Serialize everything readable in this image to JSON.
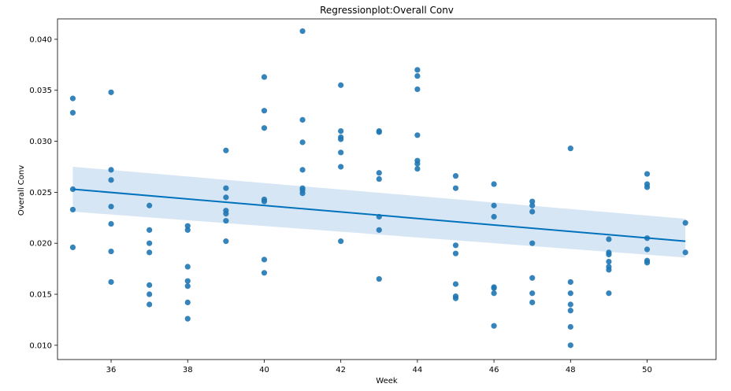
{
  "chart_data": {
    "type": "scatter",
    "title": "Regressionplot:Overall Conv",
    "xlabel": "Week",
    "ylabel": "Overall Conv",
    "xlim": [
      34.6,
      51.8
    ],
    "ylim": [
      0.0086,
      0.042
    ],
    "x_ticks": [
      36,
      38,
      40,
      42,
      44,
      46,
      48,
      50
    ],
    "x_tick_labels": [
      "36",
      "38",
      "40",
      "42",
      "44",
      "46",
      "48",
      "50"
    ],
    "y_ticks": [
      0.01,
      0.015,
      0.02,
      0.025,
      0.03,
      0.035,
      0.04
    ],
    "y_tick_labels": [
      "0.010",
      "0.015",
      "0.020",
      "0.025",
      "0.030",
      "0.035",
      "0.040"
    ],
    "grid": false,
    "legend": "none",
    "point_color": "#1f77b4",
    "line_color": "#0072bd",
    "band_color": "#c6dcef",
    "series": [
      {
        "points": [
          [
            35,
            0.0342
          ],
          [
            35,
            0.0328
          ],
          [
            35,
            0.0253
          ],
          [
            35,
            0.0233
          ],
          [
            35,
            0.0196
          ],
          [
            36,
            0.0348
          ],
          [
            36,
            0.0272
          ],
          [
            36,
            0.0262
          ],
          [
            36,
            0.0236
          ],
          [
            36,
            0.0219
          ],
          [
            36,
            0.0192
          ],
          [
            36,
            0.0162
          ],
          [
            37,
            0.0237
          ],
          [
            37,
            0.0213
          ],
          [
            37,
            0.02
          ],
          [
            37,
            0.0191
          ],
          [
            37,
            0.0159
          ],
          [
            37,
            0.015
          ],
          [
            37,
            0.014
          ],
          [
            38,
            0.0217
          ],
          [
            38,
            0.0213
          ],
          [
            38,
            0.0177
          ],
          [
            38,
            0.0163
          ],
          [
            38,
            0.0158
          ],
          [
            38,
            0.0142
          ],
          [
            38,
            0.0126
          ],
          [
            39,
            0.0291
          ],
          [
            39,
            0.0254
          ],
          [
            39,
            0.0245
          ],
          [
            39,
            0.0232
          ],
          [
            39,
            0.0229
          ],
          [
            39,
            0.0222
          ],
          [
            39,
            0.0202
          ],
          [
            40,
            0.0363
          ],
          [
            40,
            0.033
          ],
          [
            40,
            0.0313
          ],
          [
            40,
            0.0243
          ],
          [
            40,
            0.0241
          ],
          [
            40,
            0.0184
          ],
          [
            40,
            0.0171
          ],
          [
            41,
            0.0408
          ],
          [
            41,
            0.0321
          ],
          [
            41,
            0.0299
          ],
          [
            41,
            0.0272
          ],
          [
            41,
            0.0254
          ],
          [
            41,
            0.0252
          ],
          [
            41,
            0.0249
          ],
          [
            42,
            0.0355
          ],
          [
            42,
            0.031
          ],
          [
            42,
            0.0304
          ],
          [
            42,
            0.0302
          ],
          [
            42,
            0.0289
          ],
          [
            42,
            0.0275
          ],
          [
            42,
            0.0202
          ],
          [
            43,
            0.031
          ],
          [
            43,
            0.0309
          ],
          [
            43,
            0.0269
          ],
          [
            43,
            0.0263
          ],
          [
            43,
            0.0226
          ],
          [
            43,
            0.0213
          ],
          [
            43,
            0.0165
          ],
          [
            44,
            0.037
          ],
          [
            44,
            0.0364
          ],
          [
            44,
            0.0351
          ],
          [
            44,
            0.0306
          ],
          [
            44,
            0.0281
          ],
          [
            44,
            0.0278
          ],
          [
            44,
            0.0273
          ],
          [
            45,
            0.0266
          ],
          [
            45,
            0.0254
          ],
          [
            45,
            0.0198
          ],
          [
            45,
            0.019
          ],
          [
            45,
            0.016
          ],
          [
            45,
            0.0148
          ],
          [
            45,
            0.0146
          ],
          [
            46,
            0.0258
          ],
          [
            46,
            0.0237
          ],
          [
            46,
            0.0226
          ],
          [
            46,
            0.0157
          ],
          [
            46,
            0.0156
          ],
          [
            46,
            0.0151
          ],
          [
            46,
            0.0119
          ],
          [
            47,
            0.0241
          ],
          [
            47,
            0.0237
          ],
          [
            47,
            0.0231
          ],
          [
            47,
            0.02
          ],
          [
            47,
            0.0166
          ],
          [
            47,
            0.0151
          ],
          [
            47,
            0.0142
          ],
          [
            48,
            0.0293
          ],
          [
            48,
            0.0162
          ],
          [
            48,
            0.0151
          ],
          [
            48,
            0.014
          ],
          [
            48,
            0.0134
          ],
          [
            48,
            0.0118
          ],
          [
            48,
            0.01
          ],
          [
            49,
            0.0204
          ],
          [
            49,
            0.0191
          ],
          [
            49,
            0.0189
          ],
          [
            49,
            0.0182
          ],
          [
            49,
            0.0177
          ],
          [
            49,
            0.0174
          ],
          [
            49,
            0.0151
          ],
          [
            50,
            0.0268
          ],
          [
            50,
            0.0258
          ],
          [
            50,
            0.0255
          ],
          [
            50,
            0.0205
          ],
          [
            50,
            0.0194
          ],
          [
            50,
            0.0183
          ],
          [
            50,
            0.0181
          ],
          [
            51,
            0.022
          ],
          [
            51,
            0.0191
          ]
        ]
      }
    ],
    "regression": {
      "x": [
        35,
        51
      ],
      "y": [
        0.0253,
        0.0202
      ],
      "ci_lower": [
        0.0231,
        0.0186
      ],
      "ci_upper": [
        0.0275,
        0.0224
      ]
    }
  }
}
